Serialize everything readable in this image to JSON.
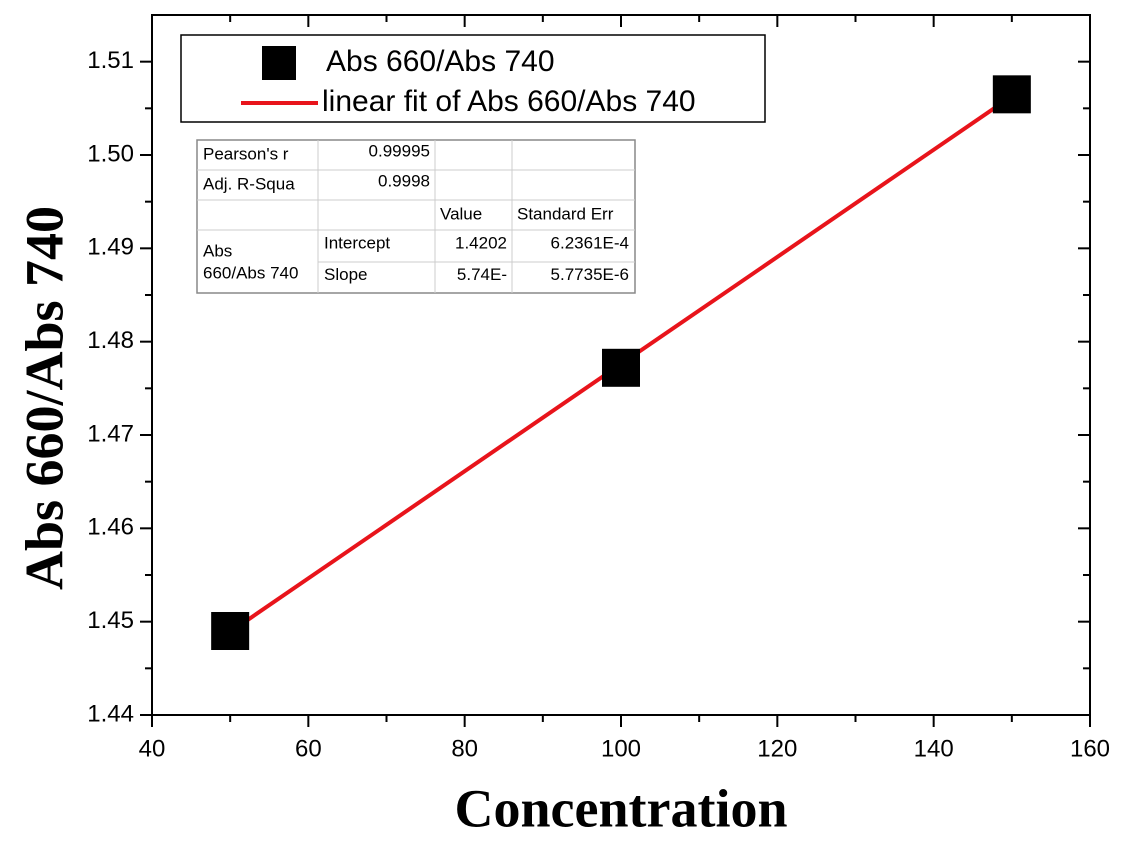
{
  "chart_data": {
    "type": "scatter",
    "x_label": "Concentration",
    "y_label": "Abs 660/Abs 740",
    "xlim": [
      40,
      160
    ],
    "xticks": [
      40,
      60,
      80,
      100,
      120,
      140,
      160
    ],
    "xminorticks": [
      50,
      70,
      90,
      110,
      130,
      150
    ],
    "ylim": [
      1.44,
      1.515
    ],
    "yticks": [
      1.44,
      1.45,
      1.46,
      1.47,
      1.48,
      1.49,
      {
        "value": 1.5,
        "label": "1.50"
      },
      1.51
    ],
    "yminorticks": [
      1.445,
      1.455,
      1.465,
      1.475,
      1.485,
      1.495,
      1.505
    ],
    "legend": "top-left",
    "series": [
      {
        "name": "Abs 660/Abs 740",
        "color": "#000000",
        "marker": "square",
        "x": [
          50,
          100,
          150
        ],
        "values": [
          1.449,
          1.4772,
          1.5065
        ]
      },
      {
        "name": "linear fit of Abs 660/Abs 740",
        "color": "#e8141b",
        "marker": "line",
        "x": [
          50,
          150
        ],
        "values": [
          1.4489,
          1.5063
        ]
      }
    ],
    "fit_table": {
      "stats": [
        {
          "label": "Pearson's r",
          "value": 0.99995
        },
        {
          "label": "Adj. R-Squa",
          "value": 0.9998
        }
      ],
      "header": [
        "Value",
        "Standard Err"
      ],
      "group": [
        "Abs",
        "660/Abs 740"
      ],
      "rows": [
        {
          "name": "Intercept",
          "value": 1.4202,
          "error": "6.2361E-4"
        },
        {
          "name": "Slope",
          "value": "5.74E-",
          "error": "5.7735E-6"
        }
      ]
    }
  }
}
